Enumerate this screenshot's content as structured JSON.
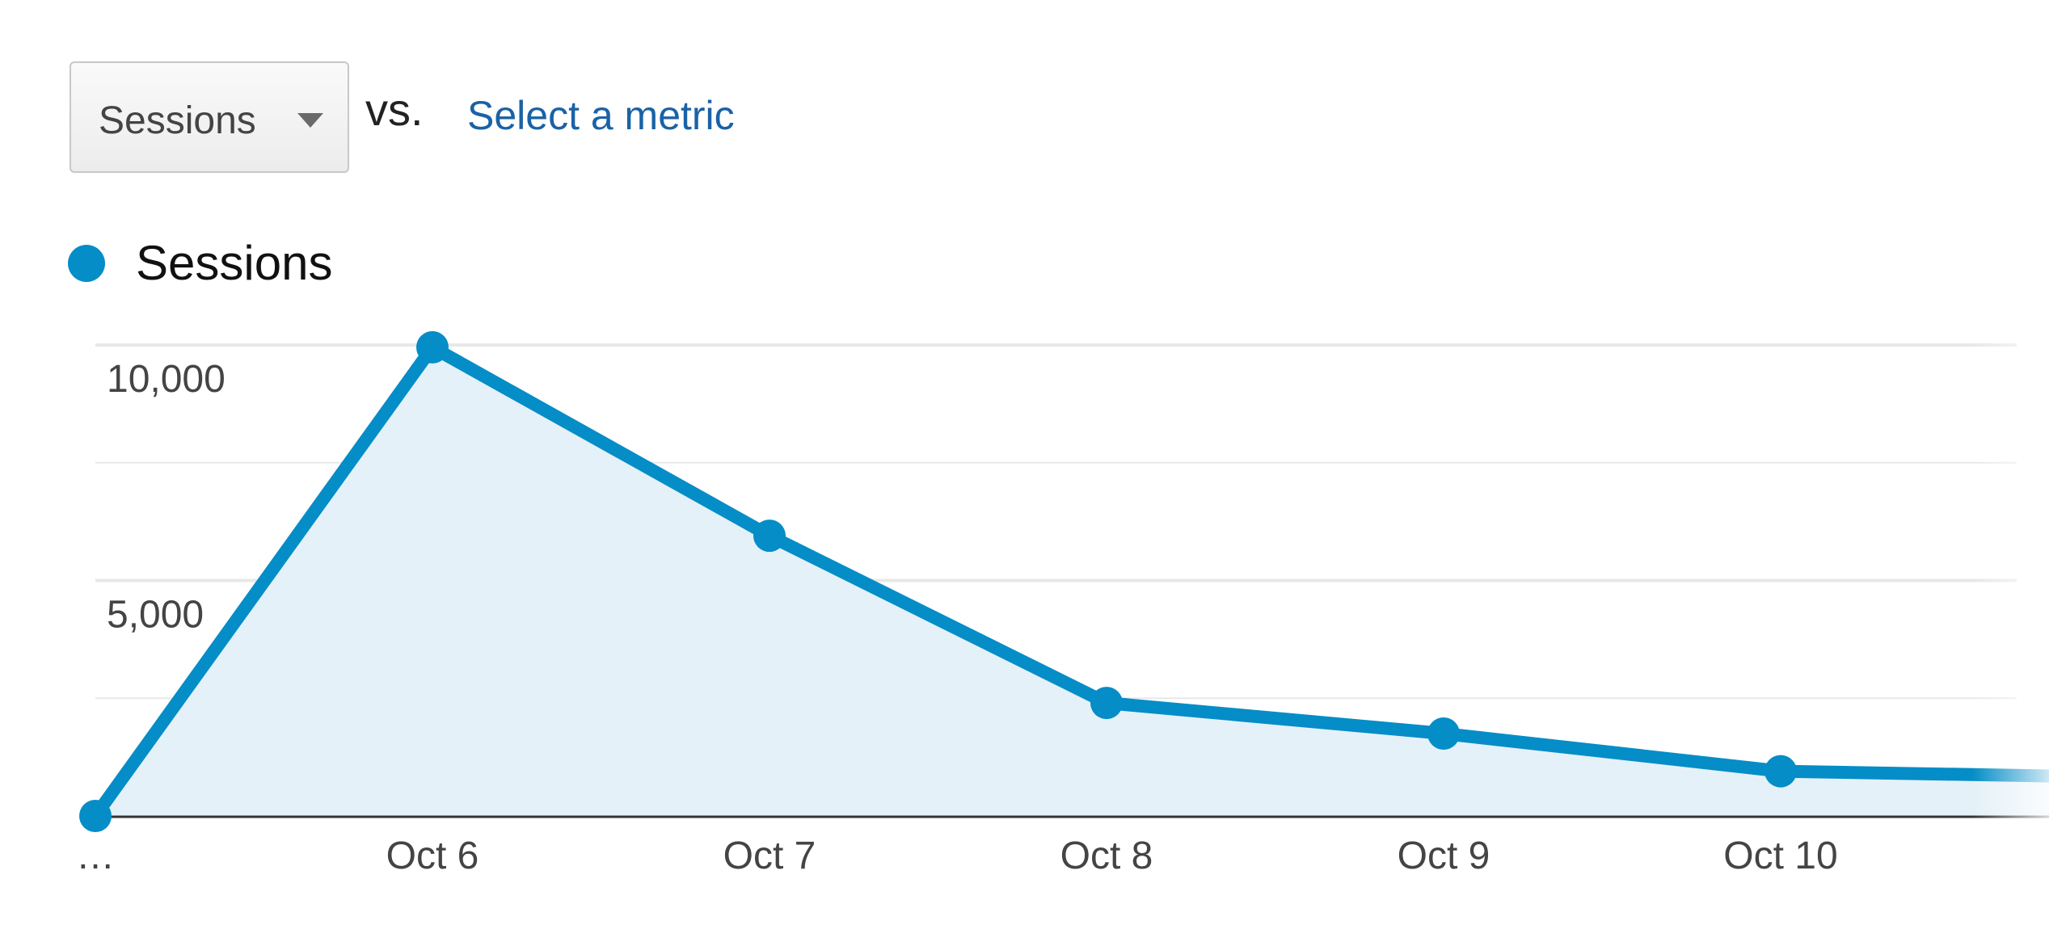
{
  "controls": {
    "metric_selected": "Sessions",
    "vs_label": "vs.",
    "compare_link": "Select a metric"
  },
  "colors": {
    "series": "#058dc7",
    "area_fill": "#e4f1f8",
    "link": "#1a62a6",
    "gridline": "#e8e8e8",
    "baseline": "#333333",
    "tick_label": "#444444"
  },
  "chart_data": {
    "type": "area",
    "x": [
      "…",
      "Oct 6",
      "Oct 7",
      "Oct 8",
      "Oct 9",
      "Oct 10"
    ],
    "series": [
      {
        "name": "Sessions",
        "values": [
          0,
          9950,
          5950,
          2400,
          1750,
          950
        ]
      }
    ],
    "trailing_value": 850,
    "ylim": [
      0,
      10500
    ],
    "yticks": [
      5000,
      10000
    ],
    "ytick_labels": [
      "5,000",
      "10,000"
    ],
    "grid": true,
    "legend": "top-left",
    "title": "",
    "xlabel": "",
    "ylabel": ""
  }
}
